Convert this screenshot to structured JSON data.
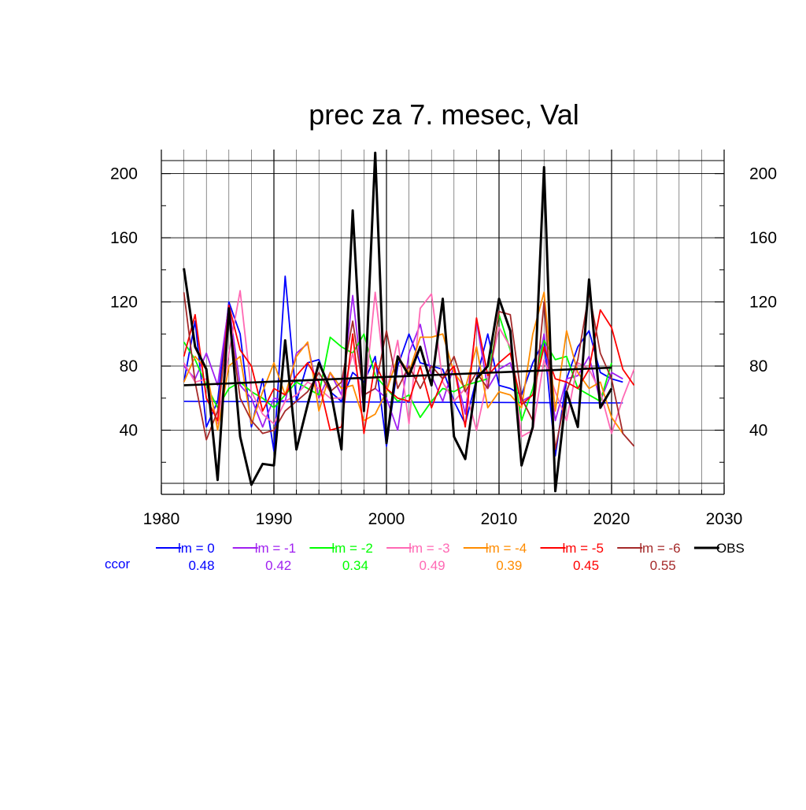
{
  "chart_data": {
    "type": "line",
    "title": "prec za 7. mesec, Val",
    "xlabel": "",
    "ylabel": "",
    "xlim": [
      1980,
      2030
    ],
    "ylim": [
      0,
      215
    ],
    "x_ticks": [
      1980,
      1990,
      2000,
      2010,
      2020,
      2030
    ],
    "y_ticks": [
      40,
      80,
      120,
      160,
      200
    ],
    "grid": true,
    "legend_position": "bottom",
    "ccor_label": "ccor",
    "series": [
      {
        "name": "lm = 0",
        "color": "#0000ff",
        "ccor": "0.48",
        "x": [
          1982,
          1983,
          1984,
          1985,
          1986,
          1987,
          1988,
          1989,
          1990,
          1991,
          1992,
          1993,
          1994,
          1995,
          1996,
          1997,
          1998,
          1999,
          2000,
          2001,
          2002,
          2003,
          2004,
          2005,
          2006,
          2007,
          2008,
          2009,
          2010,
          2011,
          2012,
          2013,
          2014,
          2015,
          2016,
          2017,
          2018,
          2019,
          2020,
          2021
        ],
        "y": [
          70,
          108,
          42,
          58,
          120,
          100,
          42,
          72,
          27,
          136,
          58,
          82,
          84,
          64,
          58,
          76,
          70,
          86,
          30,
          80,
          100,
          82,
          80,
          78,
          58,
          44,
          72,
          100,
          68,
          66,
          62,
          82,
          96,
          24,
          72,
          92,
          102,
          76,
          72,
          70
        ],
        "trend": [
          [
            1982,
            58
          ],
          [
            2021,
            57
          ]
        ]
      },
      {
        "name": "lm = -1",
        "color": "#a020f0",
        "ccor": "0.42",
        "x": [
          1982,
          1983,
          1984,
          1985,
          1986,
          1987,
          1988,
          1989,
          1990,
          1991,
          1992,
          1993,
          1994,
          1995,
          1996,
          1997,
          1998,
          1999,
          2000,
          2001,
          2002,
          2003,
          2004,
          2005,
          2006,
          2007,
          2008,
          2009,
          2010,
          2011,
          2012,
          2013,
          2014,
          2015,
          2016,
          2017,
          2018,
          2019,
          2020,
          2021
        ],
        "y": [
          80,
          72,
          88,
          68,
          118,
          68,
          60,
          42,
          60,
          58,
          88,
          94,
          60,
          76,
          62,
          124,
          62,
          66,
          60,
          40,
          88,
          106,
          74,
          58,
          80,
          50,
          108,
          66,
          78,
          82,
          58,
          62,
          100,
          46,
          72,
          74,
          86,
          58,
          76,
          72
        ]
      },
      {
        "name": "lm = -2",
        "color": "#00ff00",
        "ccor": "0.34",
        "x": [
          1982,
          1983,
          1984,
          1985,
          1986,
          1987,
          1988,
          1989,
          1990,
          1991,
          1992,
          1993,
          1994,
          1995,
          1996,
          1997,
          1998,
          1999,
          2000,
          2001,
          2002,
          2003,
          2004,
          2005,
          2006,
          2007,
          2008,
          2009,
          2010,
          2011,
          2012,
          2013,
          2014,
          2015,
          2016,
          2017,
          2018,
          2019,
          2020
        ],
        "y": [
          95,
          84,
          68,
          54,
          66,
          70,
          64,
          60,
          54,
          62,
          70,
          66,
          62,
          98,
          92,
          88,
          100,
          74,
          66,
          58,
          62,
          48,
          58,
          66,
          64,
          68,
          70,
          72,
          112,
          90,
          46,
          66,
          96,
          84,
          86,
          66,
          62,
          58,
          82
        ]
      },
      {
        "name": "lm = -3",
        "color": "#ff69b4",
        "ccor": "0.49",
        "x": [
          1982,
          1983,
          1984,
          1985,
          1986,
          1987,
          1988,
          1989,
          1990,
          1991,
          1992,
          1993,
          1994,
          1995,
          1996,
          1997,
          1998,
          1999,
          2000,
          2001,
          2002,
          2003,
          2004,
          2005,
          2006,
          2007,
          2008,
          2009,
          2010,
          2011,
          2012,
          2013,
          2014,
          2015,
          2016,
          2017,
          2018,
          2019,
          2020,
          2021,
          2022
        ],
        "y": [
          82,
          70,
          72,
          44,
          88,
          127,
          64,
          50,
          44,
          58,
          62,
          70,
          66,
          60,
          60,
          88,
          56,
          126,
          64,
          96,
          44,
          116,
          125,
          70,
          58,
          66,
          40,
          72,
          104,
          92,
          36,
          40,
          84,
          64,
          46,
          82,
          78,
          64,
          38,
          60,
          78
        ]
      },
      {
        "name": "lm = -4",
        "color": "#ff8c00",
        "ccor": "0.39",
        "x": [
          1982,
          1983,
          1984,
          1985,
          1986,
          1987,
          1988,
          1989,
          1990,
          1991,
          1992,
          1993,
          1994,
          1995,
          1996,
          1997,
          1998,
          1999,
          2000,
          2001,
          2002,
          2003,
          2004,
          2005,
          2006,
          2007,
          2008,
          2009,
          2010,
          2011,
          2012,
          2013,
          2014,
          2015,
          2016,
          2017,
          2018,
          2019,
          2020,
          2021
        ],
        "y": [
          70,
          86,
          78,
          40,
          80,
          86,
          44,
          64,
          82,
          62,
          86,
          95,
          52,
          76,
          66,
          68,
          46,
          50,
          64,
          86,
          76,
          98,
          98,
          100,
          76,
          66,
          92,
          54,
          64,
          62,
          54,
          100,
          126,
          52,
          102,
          76,
          66,
          70,
          48,
          38
        ]
      },
      {
        "name": "lm = -5",
        "color": "#ff0000",
        "ccor": "0.45",
        "x": [
          1982,
          1983,
          1984,
          1985,
          1986,
          1987,
          1988,
          1989,
          1990,
          1991,
          1992,
          1993,
          1994,
          1995,
          1996,
          1997,
          1998,
          1999,
          2000,
          2001,
          2002,
          2003,
          2004,
          2005,
          2006,
          2007,
          2008,
          2009,
          2010,
          2011,
          2012,
          2013,
          2014,
          2015,
          2016,
          2017,
          2018,
          2019,
          2020,
          2021,
          2022
        ],
        "y": [
          86,
          112,
          60,
          46,
          118,
          90,
          80,
          52,
          66,
          62,
          74,
          82,
          70,
          40,
          42,
          100,
          38,
          82,
          66,
          60,
          58,
          80,
          54,
          72,
          80,
          42,
          110,
          74,
          82,
          88,
          56,
          62,
          92,
          72,
          70,
          66,
          78,
          115,
          104,
          78,
          68
        ]
      },
      {
        "name": "lm = -6",
        "color": "#a52a2a",
        "ccor": "0.55",
        "x": [
          1982,
          1983,
          1984,
          1985,
          1986,
          1987,
          1988,
          1989,
          1990,
          1991,
          1992,
          1993,
          1994,
          1995,
          1996,
          1997,
          1998,
          1999,
          2000,
          2001,
          2002,
          2003,
          2004,
          2005,
          2006,
          2007,
          2008,
          2009,
          2010,
          2011,
          2012,
          2013,
          2014,
          2015,
          2016,
          2017,
          2018,
          2019,
          2020,
          2021,
          2022
        ],
        "y": [
          126,
          70,
          34,
          52,
          112,
          60,
          46,
          38,
          40,
          52,
          58,
          64,
          76,
          64,
          70,
          108,
          62,
          66,
          102,
          66,
          80,
          66,
          80,
          72,
          86,
          64,
          76,
          66,
          114,
          112,
          60,
          46,
          120,
          28,
          64,
          84,
          126,
          88,
          72,
          38,
          30
        ]
      },
      {
        "name": "OBS",
        "color": "#000000",
        "ccor": "",
        "bold": true,
        "x": [
          1982,
          1983,
          1984,
          1985,
          1986,
          1987,
          1988,
          1989,
          1990,
          1991,
          1992,
          1993,
          1994,
          1995,
          1996,
          1997,
          1998,
          1999,
          2000,
          2001,
          2002,
          2003,
          2004,
          2005,
          2006,
          2007,
          2008,
          2009,
          2010,
          2011,
          2012,
          2013,
          2014,
          2015,
          2016,
          2017,
          2018,
          2019,
          2020
        ],
        "y": [
          141,
          92,
          78,
          9,
          116,
          36,
          6,
          19,
          18,
          96,
          28,
          56,
          82,
          66,
          28,
          177,
          52,
          213,
          32,
          86,
          74,
          92,
          68,
          122,
          36,
          22,
          72,
          80,
          122,
          102,
          18,
          42,
          204,
          2,
          64,
          42,
          134,
          54,
          66
        ],
        "trend": [
          [
            1982,
            68
          ],
          [
            2020,
            79
          ]
        ]
      }
    ]
  }
}
